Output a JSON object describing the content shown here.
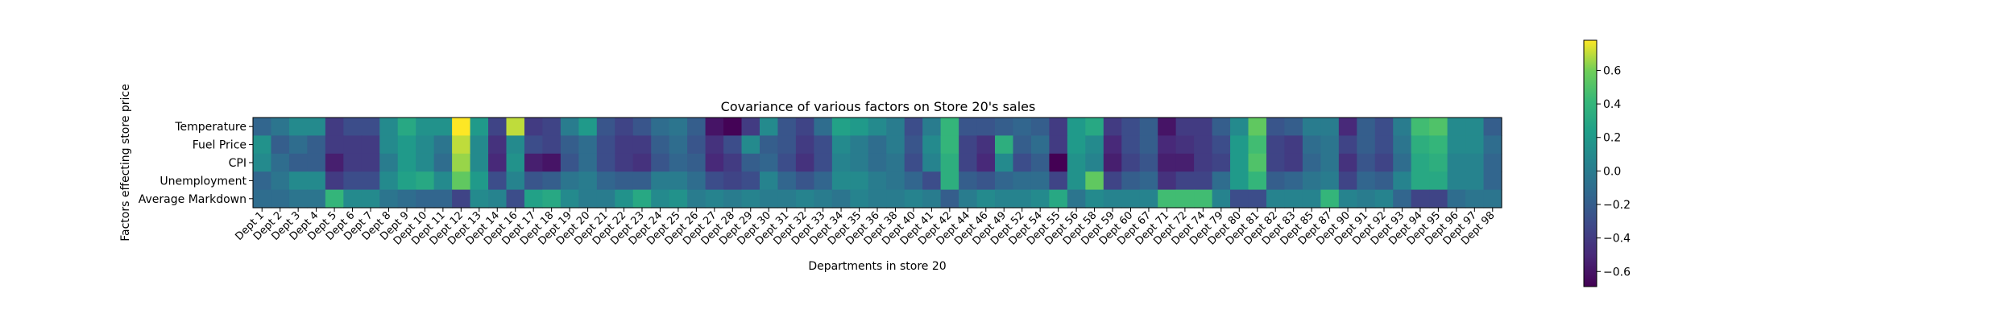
{
  "chart_data": {
    "type": "heatmap",
    "title": "Covariance of various factors on Store 20's sales",
    "xlabel": "Departments in store 20",
    "ylabel": "Factors effecting store price",
    "rows": [
      "Temperature",
      "Fuel Price",
      "CPI",
      "Unemployment",
      "Average Markdown"
    ],
    "columns": [
      "Dept 1",
      "Dept 2",
      "Dept 3",
      "Dept 4",
      "Dept 5",
      "Dept 6",
      "Dept 7",
      "Dept 8",
      "Dept 9",
      "Dept 10",
      "Dept 11",
      "Dept 12",
      "Dept 13",
      "Dept 14",
      "Dept 16",
      "Dept 17",
      "Dept 18",
      "Dept 19",
      "Dept 20",
      "Dept 21",
      "Dept 22",
      "Dept 23",
      "Dept 24",
      "Dept 25",
      "Dept 26",
      "Dept 27",
      "Dept 28",
      "Dept 29",
      "Dept 30",
      "Dept 31",
      "Dept 32",
      "Dept 33",
      "Dept 34",
      "Dept 35",
      "Dept 36",
      "Dept 38",
      "Dept 40",
      "Dept 41",
      "Dept 42",
      "Dept 44",
      "Dept 46",
      "Dept 49",
      "Dept 52",
      "Dept 54",
      "Dept 55",
      "Dept 56",
      "Dept 58",
      "Dept 59",
      "Dept 60",
      "Dept 67",
      "Dept 71",
      "Dept 72",
      "Dept 74",
      "Dept 79",
      "Dept 80",
      "Dept 81",
      "Dept 82",
      "Dept 83",
      "Dept 85",
      "Dept 87",
      "Dept 90",
      "Dept 91",
      "Dept 92",
      "Dept 93",
      "Dept 94",
      "Dept 95",
      "Dept 96",
      "Dept 97",
      "Dept 98"
    ],
    "x_tick_labels": [
      "Dept 1",
      "Dept 2",
      "Dept 3",
      "Dept 4",
      "Dept 5",
      "Dept 6",
      "Dept 7",
      "Dept 8",
      "Dept 9",
      "Dept 10",
      "Dept 11",
      "Dept 12",
      "Dept 13",
      "Dept 14",
      "Dept 16",
      "Dept 17",
      "Dept 18",
      "Dept 19",
      "Dept 20",
      "Dept 21",
      "Dept 22",
      "Dept 23",
      "Dept 24",
      "Dept 25",
      "Dept 26",
      "Dept 27",
      "Dept 28",
      "Dept 29",
      "Dept 30",
      "Dept 31",
      "Dept 32",
      "Dept 33",
      "Dept 34",
      "Dept 35",
      "Dept 36",
      "Dept 38",
      "Dept 40",
      "Dept 41",
      "Dept 42",
      "Dept 44",
      "Dept 46",
      "Dept 49",
      "Dept 52",
      "Dept 54",
      "Dept 55",
      "Dept 56",
      "Dept 58",
      "Dept 59",
      "Dept 60",
      "Dept 67",
      "Dept 71",
      "Dept 72",
      "Dept 74",
      "Dept 79",
      "Dept 80",
      "Dept 81",
      "Dept 82",
      "Dept 83",
      "Dept 85",
      "Dept 87",
      "Dept 90",
      "Dept 91",
      "Dept 92",
      "Dept 93",
      "Dept 94",
      "Dept 95",
      "Dept 96",
      "Dept 97",
      "Dept 98"
    ],
    "values": [
      [
        -0.15,
        -0.05,
        0.1,
        0.1,
        -0.4,
        -0.3,
        -0.3,
        0.1,
        0.3,
        0.15,
        0.15,
        0.78,
        0.2,
        -0.35,
        0.7,
        -0.4,
        -0.35,
        0.0,
        0.2,
        -0.25,
        -0.35,
        -0.25,
        -0.1,
        -0.05,
        -0.2,
        -0.6,
        -0.68,
        -0.4,
        0.1,
        -0.25,
        -0.35,
        -0.1,
        0.25,
        0.2,
        0.1,
        0.0,
        -0.3,
        0.0,
        0.4,
        -0.25,
        -0.25,
        -0.2,
        -0.15,
        -0.2,
        -0.4,
        0.2,
        0.3,
        -0.4,
        -0.3,
        -0.2,
        -0.6,
        -0.4,
        -0.4,
        -0.2,
        0.1,
        0.55,
        -0.25,
        -0.2,
        0.0,
        0.0,
        -0.5,
        -0.2,
        -0.3,
        0.0,
        0.45,
        0.5,
        0.1,
        0.1,
        -0.2
      ],
      [
        0.15,
        -0.2,
        -0.1,
        -0.2,
        -0.4,
        -0.4,
        -0.4,
        0.1,
        0.2,
        0.1,
        -0.05,
        0.7,
        0.1,
        -0.45,
        0.1,
        -0.3,
        -0.35,
        -0.2,
        -0.1,
        -0.3,
        -0.4,
        -0.4,
        -0.2,
        -0.1,
        -0.25,
        -0.45,
        -0.3,
        0.1,
        -0.2,
        -0.25,
        -0.4,
        -0.3,
        0.1,
        0.0,
        -0.1,
        0.0,
        -0.25,
        0.1,
        0.4,
        -0.35,
        -0.45,
        0.35,
        -0.2,
        -0.1,
        -0.4,
        0.2,
        0.1,
        -0.5,
        -0.3,
        -0.2,
        -0.5,
        -0.45,
        -0.4,
        -0.3,
        0.2,
        0.45,
        -0.35,
        -0.4,
        -0.1,
        -0.05,
        -0.35,
        -0.2,
        -0.3,
        -0.05,
        0.35,
        0.4,
        0.1,
        0.1,
        -0.1
      ],
      [
        0.1,
        -0.1,
        -0.2,
        -0.2,
        -0.55,
        -0.4,
        -0.4,
        0.0,
        0.2,
        0.1,
        -0.1,
        0.65,
        0.1,
        -0.5,
        0.15,
        -0.55,
        -0.6,
        -0.25,
        -0.1,
        -0.3,
        -0.4,
        -0.45,
        -0.25,
        -0.15,
        -0.2,
        -0.5,
        -0.4,
        -0.2,
        -0.15,
        -0.3,
        -0.45,
        -0.3,
        0.05,
        0.0,
        -0.1,
        -0.05,
        -0.3,
        0.05,
        0.35,
        -0.35,
        -0.5,
        0.1,
        -0.3,
        -0.2,
        -0.7,
        0.15,
        0.05,
        -0.55,
        -0.35,
        -0.25,
        -0.55,
        -0.55,
        -0.4,
        -0.35,
        0.2,
        0.5,
        -0.35,
        -0.4,
        -0.15,
        -0.05,
        -0.45,
        -0.25,
        -0.35,
        -0.1,
        0.3,
        0.35,
        0.05,
        0.05,
        -0.15
      ],
      [
        -0.15,
        -0.05,
        0.1,
        0.1,
        -0.4,
        -0.3,
        -0.3,
        0.1,
        0.25,
        0.3,
        0.1,
        0.55,
        0.2,
        -0.3,
        0.05,
        -0.25,
        -0.2,
        -0.05,
        0.0,
        -0.15,
        -0.2,
        -0.2,
        0.0,
        0.0,
        -0.1,
        -0.3,
        -0.35,
        -0.3,
        0.05,
        -0.15,
        -0.25,
        -0.15,
        0.1,
        0.1,
        0.0,
        -0.05,
        -0.15,
        -0.3,
        0.35,
        -0.2,
        -0.25,
        -0.15,
        -0.1,
        -0.1,
        -0.35,
        0.15,
        0.55,
        -0.35,
        -0.2,
        -0.15,
        -0.45,
        -0.35,
        -0.35,
        -0.1,
        0.2,
        0.4,
        -0.2,
        -0.15,
        -0.05,
        0.0,
        -0.35,
        -0.15,
        -0.2,
        0.05,
        0.3,
        0.3,
        0.05,
        0.05,
        -0.15
      ],
      [
        -0.1,
        -0.1,
        -0.05,
        -0.05,
        0.4,
        0.1,
        0.1,
        -0.05,
        -0.1,
        -0.15,
        -0.15,
        -0.35,
        0.1,
        0.05,
        -0.3,
        0.25,
        0.3,
        0.1,
        0.0,
        0.0,
        0.15,
        0.3,
        0.1,
        0.15,
        0.0,
        0.05,
        0.0,
        0.05,
        0.0,
        0.0,
        0.05,
        0.0,
        -0.05,
        0.05,
        0.0,
        0.0,
        0.05,
        0.0,
        -0.2,
        0.0,
        0.1,
        0.05,
        0.05,
        0.1,
        0.3,
        -0.05,
        0.1,
        0.05,
        0.05,
        0.05,
        0.45,
        0.45,
        0.45,
        0.05,
        -0.3,
        -0.3,
        0.05,
        0.05,
        0.05,
        0.4,
        0.05,
        0.0,
        0.05,
        -0.15,
        -0.35,
        -0.35,
        -0.1,
        -0.05,
        -0.05
      ]
    ],
    "vmin": -0.69,
    "vmax": 0.78,
    "colormap": "viridis",
    "colorbar_ticks": [
      "0.6",
      "0.4",
      "0.2",
      "0.0",
      "−0.2",
      "−0.4",
      "−0.6"
    ],
    "colorbar_tick_values": [
      0.6,
      0.4,
      0.2,
      0.0,
      -0.2,
      -0.4,
      -0.6
    ]
  }
}
